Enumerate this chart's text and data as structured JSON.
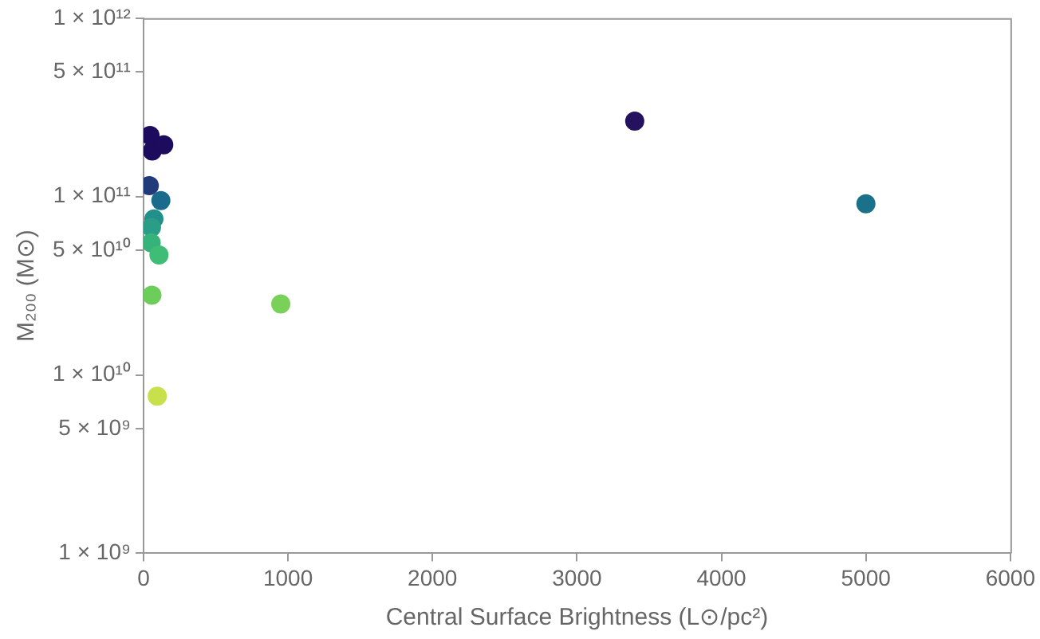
{
  "chart_data": {
    "type": "scatter",
    "xlabel": "Central Surface Brightness (L⊙/pc²)",
    "ylabel": "M₂₀₀ (M⊙)",
    "x": [
      45,
      60,
      140,
      3400,
      40,
      120,
      5000,
      72,
      55,
      53,
      107,
      58,
      950,
      95
    ],
    "values": [
      220000000000.0,
      180000000000.0,
      195000000000.0,
      265000000000.0,
      115000000000.0,
      95000000000.0,
      91000000000.0,
      75000000000.0,
      67000000000.0,
      55000000000.0,
      47000000000.0,
      28000000000.0,
      25000000000.0,
      7600000000.0
    ],
    "colors": [
      "#1d0b5e",
      "#1d0b5e",
      "#1d0b5e",
      "#24125e",
      "#203a7a",
      "#1a6b8c",
      "#1b718a",
      "#218f8a",
      "#2a9d86",
      "#35b37b",
      "#3fbc76",
      "#6ccd5a",
      "#7ad15a",
      "#c7e04c"
    ],
    "xlim": [
      0,
      6000
    ],
    "xticks": [
      0,
      1000,
      2000,
      3000,
      4000,
      5000,
      6000
    ],
    "ylim": [
      1000000000.0,
      1000000000000.0
    ],
    "yticks": [
      {
        "value": 1000000000.0,
        "label": "1 × 10⁹"
      },
      {
        "value": 5000000000.0,
        "label": "5 × 10⁹"
      },
      {
        "value": 10000000000.0,
        "label": "1 × 10¹⁰"
      },
      {
        "value": 50000000000.0,
        "label": "5 × 10¹⁰"
      },
      {
        "value": 100000000000.0,
        "label": "1 × 10¹¹"
      },
      {
        "value": 500000000000.0,
        "label": "5 × 10¹¹"
      },
      {
        "value": 1000000000000.0,
        "label": "1 × 10¹²"
      }
    ],
    "log": "y",
    "grid": false,
    "marker": "circle",
    "legend": false
  }
}
